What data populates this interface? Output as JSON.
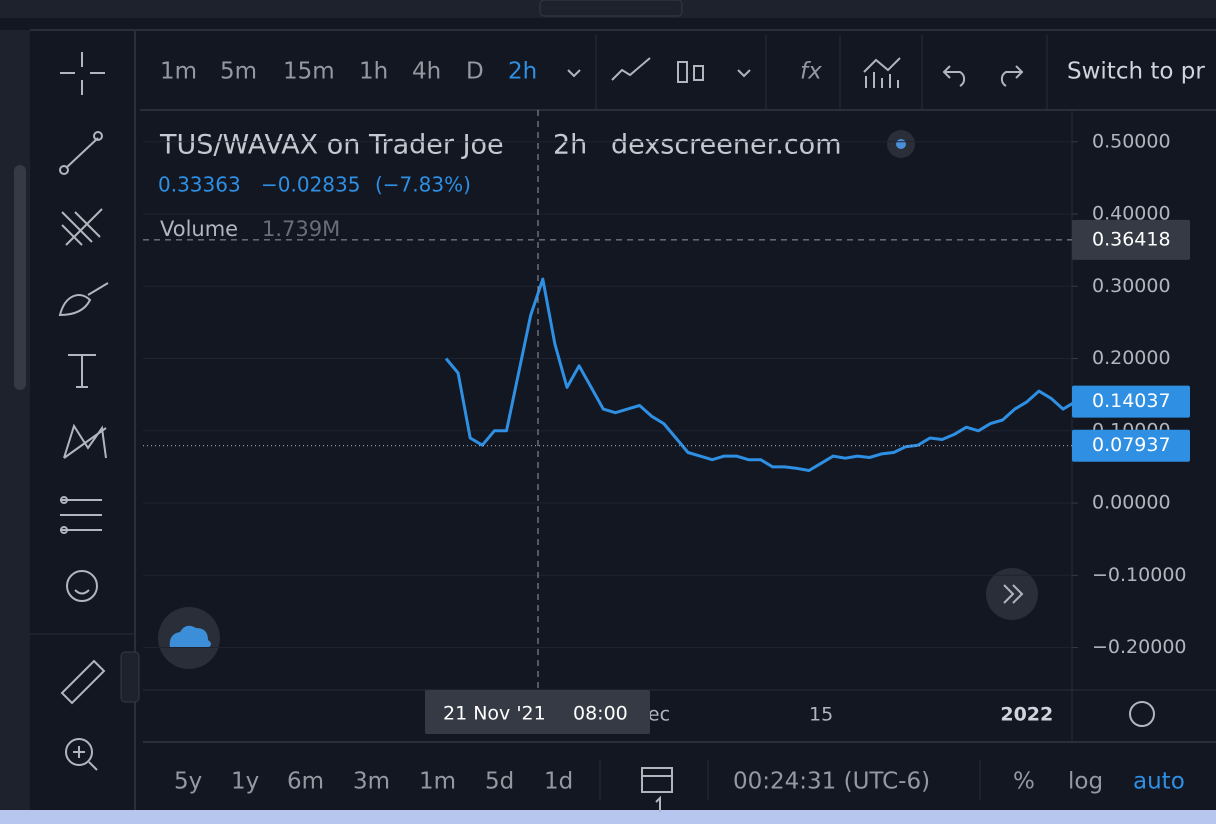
{
  "toolbar": {
    "intervals": [
      "1m",
      "5m",
      "15m",
      "1h",
      "4h",
      "D",
      "2h"
    ],
    "switch": "Switch to pr"
  },
  "legend": {
    "title": "TUS/WAVAX on Trader Joe",
    "interval": "2h",
    "source": "dexscreener.com",
    "last": 0.33363,
    "change": {
      "value": -0.02835,
      "label": "−0.02835"
    },
    "change_pct": {
      "value": -7.83,
      "label": "(−7.83%)"
    },
    "volume_label": "Volume",
    "volume": {
      "value": 1739000,
      "label": "1.739M"
    }
  },
  "chart_data": {
    "type": "line",
    "color": "#2e8fe3",
    "categories": [
      null,
      null,
      null,
      null,
      null,
      null,
      null,
      null,
      null,
      null,
      null,
      null,
      null,
      null,
      null,
      null,
      null,
      "Dec",
      null,
      null,
      null,
      null,
      null,
      null,
      null,
      null,
      null,
      null,
      null,
      null,
      null,
      "15",
      null,
      null,
      null,
      null,
      null,
      null,
      null,
      null,
      null,
      null,
      null,
      null,
      null,
      null,
      null,
      null,
      "2022",
      null,
      null,
      null,
      null
    ],
    "values": [
      0.2,
      0.18,
      0.09,
      0.08,
      0.1,
      0.1,
      0.18,
      0.26,
      0.31,
      0.22,
      0.16,
      0.19,
      0.16,
      0.13,
      0.125,
      0.13,
      0.135,
      0.12,
      0.11,
      0.09,
      0.07,
      0.065,
      0.06,
      0.065,
      0.065,
      0.06,
      0.06,
      0.05,
      0.05,
      0.048,
      0.045,
      0.055,
      0.065,
      0.062,
      0.065,
      0.063,
      0.068,
      0.07,
      0.078,
      0.08,
      0.09,
      0.088,
      0.095,
      0.105,
      0.1,
      0.11,
      0.115,
      0.13,
      0.14,
      0.155,
      0.145,
      0.13,
      0.14
    ],
    "ylim": [
      -0.256,
      0.544
    ],
    "yticks": [
      {
        "value": -0.2,
        "label": "−0.20000"
      },
      {
        "value": -0.1,
        "label": "−0.10000"
      },
      {
        "value": 0,
        "label": "0.00000"
      },
      {
        "value": 0.1,
        "label": "0.10000"
      },
      {
        "value": 0.2,
        "label": "0.20000"
      },
      {
        "value": 0.3,
        "label": "0.30000"
      },
      {
        "value": 0.4,
        "label": "0.40000"
      },
      {
        "value": 0.5,
        "label": "0.50000"
      }
    ],
    "grid": true,
    "crosshair": {
      "value": 0.36418,
      "date": "21 Nov '21",
      "time": "08:00"
    },
    "price_markers": [
      0.14037,
      0.07937
    ]
  },
  "bottom_bar": {
    "ranges": [
      "5y",
      "1y",
      "6m",
      "3m",
      "1m",
      "5d",
      "1d"
    ],
    "clock": "00:24:31 (UTC-6)",
    "percent": "%",
    "log": "log",
    "auto": "auto"
  }
}
